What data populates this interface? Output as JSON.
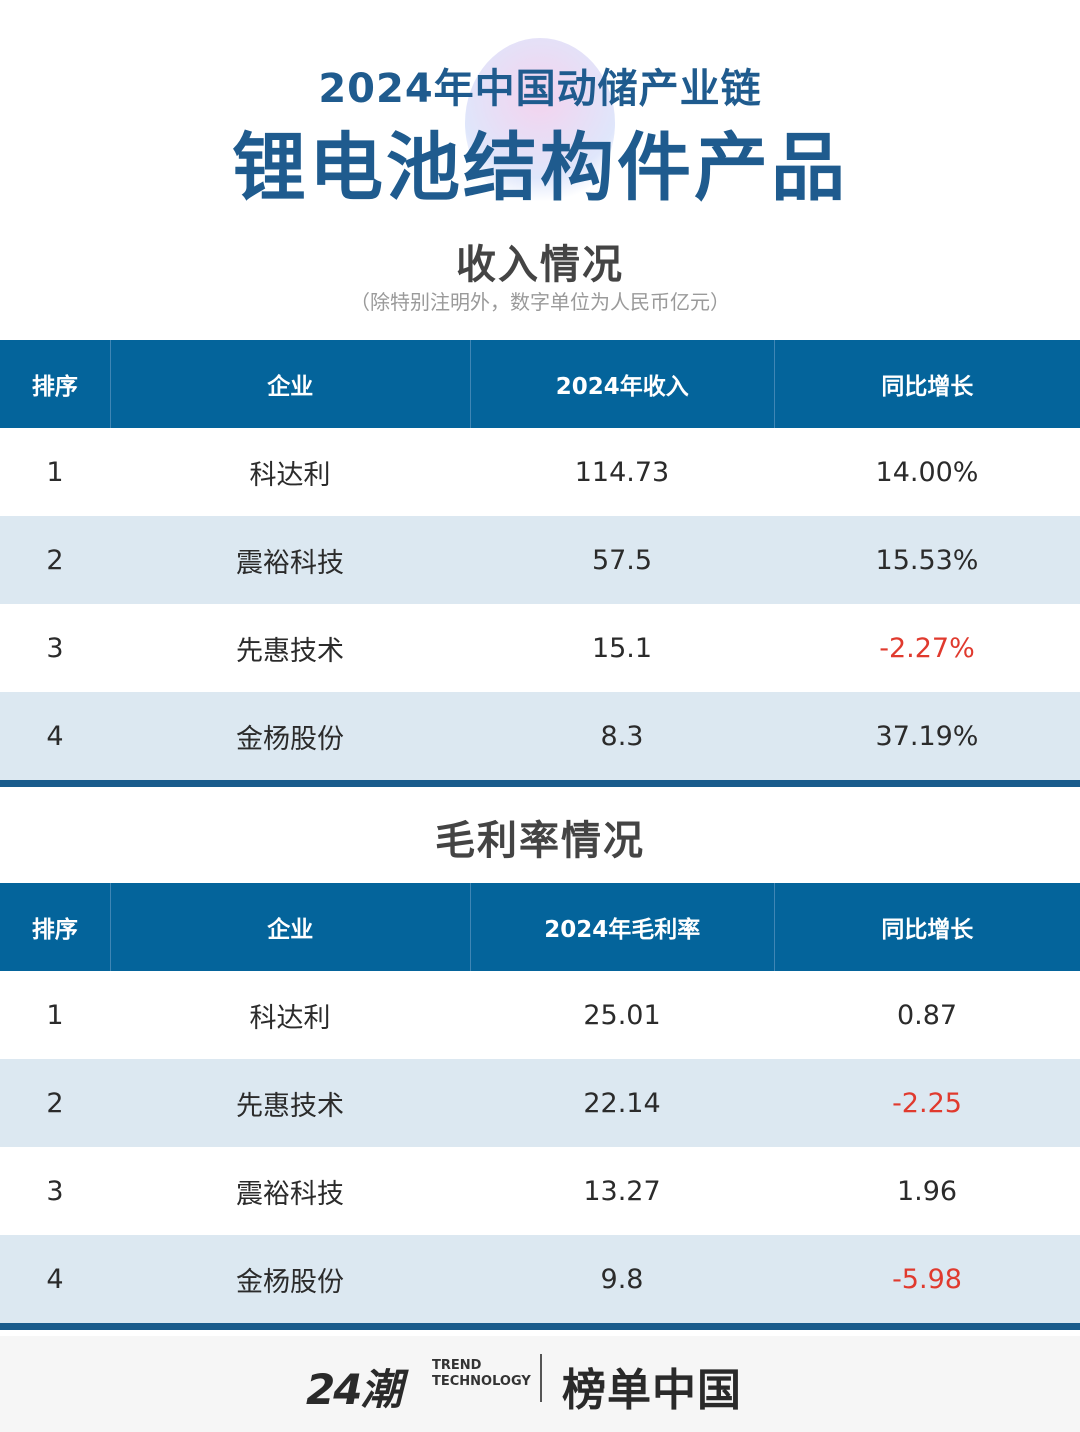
{
  "header": {
    "title_line1": "2024年中国动储产业链",
    "title_line2": "锂电池结构件产品"
  },
  "revenue": {
    "title": "收入情况",
    "note": "（除特别注明外，数字单位为人民币亿元）",
    "columns": [
      "排序",
      "企业",
      "2024年收入",
      "同比增长"
    ],
    "rows": [
      {
        "rank": "1",
        "company": "科达利",
        "value": "114.73",
        "growth": "14.00%"
      },
      {
        "rank": "2",
        "company": "震裕科技",
        "value": "57.5",
        "growth": "15.53%"
      },
      {
        "rank": "3",
        "company": "先惠技术",
        "value": "15.1",
        "growth": "-2.27%"
      },
      {
        "rank": "4",
        "company": "金杨股份",
        "value": "8.3",
        "growth": "37.19%"
      }
    ]
  },
  "margin": {
    "title": "毛利率情况",
    "columns": [
      "排序",
      "企业",
      "2024年毛利率",
      "同比增长"
    ],
    "rows": [
      {
        "rank": "1",
        "company": "科达利",
        "value": "25.01",
        "growth": "0.87"
      },
      {
        "rank": "2",
        "company": "先惠技术",
        "value": "22.14",
        "growth": "-2.25"
      },
      {
        "rank": "3",
        "company": "震裕科技",
        "value": "13.27",
        "growth": "1.96"
      },
      {
        "rank": "4",
        "company": "金杨股份",
        "value": "9.8",
        "growth": "-5.98"
      }
    ]
  },
  "footer": {
    "logo_number": "24潮",
    "logo_en_line1": "TREND",
    "logo_en_line2": "TECHNOLOGY",
    "logo_brand": "榜单中国"
  },
  "colors": {
    "title_blue": "#1f5b8e",
    "header_bg": "#04649b",
    "alt_row": "#dce8f1",
    "negative": "#e03a2e"
  }
}
